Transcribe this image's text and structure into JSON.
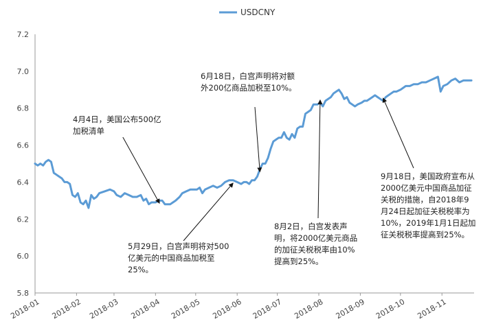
{
  "chart_data": {
    "type": "line",
    "title": "",
    "legend": {
      "position": "top",
      "entries": [
        "USDCNY"
      ]
    },
    "ylim": [
      5.8,
      7.2
    ],
    "yticks": [
      "5.8",
      "6.0",
      "6.2",
      "6.4",
      "6.6",
      "6.8",
      "7.0",
      "7.2"
    ],
    "xlim": [
      "2018-01-01",
      "2018-11-25"
    ],
    "xticks": [
      "2018-01",
      "2018-02",
      "2018-03",
      "2018-04",
      "2018-05",
      "2018-06",
      "2018-07",
      "2018-08",
      "2018-09",
      "2018-10",
      "2018-11"
    ],
    "grid": false,
    "series": [
      {
        "name": "USDCNY",
        "color": "#5b9bd5",
        "points": [
          [
            "2018-01-01",
            6.5
          ],
          [
            "2018-01-03",
            6.49
          ],
          [
            "2018-01-05",
            6.5
          ],
          [
            "2018-01-07",
            6.49
          ],
          [
            "2018-01-09",
            6.51
          ],
          [
            "2018-01-11",
            6.52
          ],
          [
            "2018-01-13",
            6.51
          ],
          [
            "2018-01-15",
            6.45
          ],
          [
            "2018-01-17",
            6.44
          ],
          [
            "2018-01-19",
            6.43
          ],
          [
            "2018-01-21",
            6.42
          ],
          [
            "2018-01-23",
            6.4
          ],
          [
            "2018-01-25",
            6.4
          ],
          [
            "2018-01-27",
            6.39
          ],
          [
            "2018-01-29",
            6.33
          ],
          [
            "2018-01-31",
            6.32
          ],
          [
            "2018-02-02",
            6.34
          ],
          [
            "2018-02-04",
            6.29
          ],
          [
            "2018-02-06",
            6.28
          ],
          [
            "2018-02-08",
            6.3
          ],
          [
            "2018-02-10",
            6.26
          ],
          [
            "2018-02-12",
            6.33
          ],
          [
            "2018-02-14",
            6.31
          ],
          [
            "2018-02-16",
            6.32
          ],
          [
            "2018-02-18",
            6.34
          ],
          [
            "2018-02-22",
            6.35
          ],
          [
            "2018-02-26",
            6.36
          ],
          [
            "2018-03-01",
            6.35
          ],
          [
            "2018-03-03",
            6.33
          ],
          [
            "2018-03-06",
            6.32
          ],
          [
            "2018-03-09",
            6.34
          ],
          [
            "2018-03-12",
            6.33
          ],
          [
            "2018-03-15",
            6.32
          ],
          [
            "2018-03-18",
            6.32
          ],
          [
            "2018-03-21",
            6.33
          ],
          [
            "2018-03-23",
            6.3
          ],
          [
            "2018-03-25",
            6.31
          ],
          [
            "2018-03-27",
            6.28
          ],
          [
            "2018-03-29",
            6.29
          ],
          [
            "2018-04-01",
            6.29
          ],
          [
            "2018-04-04",
            6.3
          ],
          [
            "2018-04-06",
            6.3
          ],
          [
            "2018-04-08",
            6.28
          ],
          [
            "2018-04-10",
            6.28
          ],
          [
            "2018-04-12",
            6.28
          ],
          [
            "2018-04-14",
            6.29
          ],
          [
            "2018-04-16",
            6.3
          ],
          [
            "2018-04-19",
            6.32
          ],
          [
            "2018-04-21",
            6.34
          ],
          [
            "2018-04-24",
            6.35
          ],
          [
            "2018-04-27",
            6.36
          ],
          [
            "2018-04-30",
            6.36
          ],
          [
            "2018-05-02",
            6.36
          ],
          [
            "2018-05-04",
            6.37
          ],
          [
            "2018-05-06",
            6.34
          ],
          [
            "2018-05-08",
            6.36
          ],
          [
            "2018-05-11",
            6.37
          ],
          [
            "2018-05-14",
            6.38
          ],
          [
            "2018-05-17",
            6.37
          ],
          [
            "2018-05-20",
            6.38
          ],
          [
            "2018-05-23",
            6.4
          ],
          [
            "2018-05-26",
            6.41
          ],
          [
            "2018-05-29",
            6.41
          ],
          [
            "2018-06-01",
            6.4
          ],
          [
            "2018-06-04",
            6.39
          ],
          [
            "2018-06-06",
            6.4
          ],
          [
            "2018-06-08",
            6.4
          ],
          [
            "2018-06-10",
            6.39
          ],
          [
            "2018-06-12",
            6.41
          ],
          [
            "2018-06-14",
            6.41
          ],
          [
            "2018-06-16",
            6.43
          ],
          [
            "2018-06-18",
            6.47
          ],
          [
            "2018-06-20",
            6.5
          ],
          [
            "2018-06-22",
            6.5
          ],
          [
            "2018-06-24",
            6.53
          ],
          [
            "2018-06-26",
            6.58
          ],
          [
            "2018-06-28",
            6.62
          ],
          [
            "2018-06-30",
            6.63
          ],
          [
            "2018-07-02",
            6.64
          ],
          [
            "2018-07-04",
            6.64
          ],
          [
            "2018-07-06",
            6.67
          ],
          [
            "2018-07-08",
            6.64
          ],
          [
            "2018-07-10",
            6.63
          ],
          [
            "2018-07-12",
            6.66
          ],
          [
            "2018-07-14",
            6.64
          ],
          [
            "2018-07-16",
            6.69
          ],
          [
            "2018-07-18",
            6.7
          ],
          [
            "2018-07-20",
            6.7
          ],
          [
            "2018-07-22",
            6.77
          ],
          [
            "2018-07-24",
            6.78
          ],
          [
            "2018-07-26",
            6.79
          ],
          [
            "2018-07-28",
            6.82
          ],
          [
            "2018-07-31",
            6.82
          ],
          [
            "2018-08-02",
            6.83
          ],
          [
            "2018-08-04",
            6.81
          ],
          [
            "2018-08-06",
            6.84
          ],
          [
            "2018-08-08",
            6.85
          ],
          [
            "2018-08-10",
            6.86
          ],
          [
            "2018-08-12",
            6.88
          ],
          [
            "2018-08-14",
            6.89
          ],
          [
            "2018-08-16",
            6.9
          ],
          [
            "2018-08-18",
            6.88
          ],
          [
            "2018-08-20",
            6.85
          ],
          [
            "2018-08-22",
            6.86
          ],
          [
            "2018-08-24",
            6.83
          ],
          [
            "2018-08-26",
            6.82
          ],
          [
            "2018-08-28",
            6.81
          ],
          [
            "2018-08-30",
            6.82
          ],
          [
            "2018-09-02",
            6.83
          ],
          [
            "2018-09-04",
            6.84
          ],
          [
            "2018-09-06",
            6.84
          ],
          [
            "2018-09-08",
            6.85
          ],
          [
            "2018-09-10",
            6.86
          ],
          [
            "2018-09-12",
            6.87
          ],
          [
            "2018-09-14",
            6.86
          ],
          [
            "2018-09-16",
            6.85
          ],
          [
            "2018-09-18",
            6.84
          ],
          [
            "2018-09-20",
            6.86
          ],
          [
            "2018-09-22",
            6.87
          ],
          [
            "2018-09-24",
            6.88
          ],
          [
            "2018-09-26",
            6.89
          ],
          [
            "2018-09-28",
            6.89
          ],
          [
            "2018-10-01",
            6.9
          ],
          [
            "2018-10-03",
            6.91
          ],
          [
            "2018-10-05",
            6.92
          ],
          [
            "2018-10-08",
            6.92
          ],
          [
            "2018-10-11",
            6.93
          ],
          [
            "2018-10-14",
            6.93
          ],
          [
            "2018-10-17",
            6.94
          ],
          [
            "2018-10-20",
            6.94
          ],
          [
            "2018-10-23",
            6.95
          ],
          [
            "2018-10-26",
            6.96
          ],
          [
            "2018-10-29",
            6.97
          ],
          [
            "2018-10-31",
            6.89
          ],
          [
            "2018-11-02",
            6.92
          ],
          [
            "2018-11-05",
            6.93
          ],
          [
            "2018-11-08",
            6.95
          ],
          [
            "2018-11-11",
            6.96
          ],
          [
            "2018-11-14",
            6.94
          ],
          [
            "2018-11-17",
            6.95
          ],
          [
            "2018-11-20",
            6.95
          ],
          [
            "2018-11-23",
            6.95
          ]
        ]
      }
    ],
    "annotations": [
      {
        "text": "4月4日，美国公布500亿加税清单",
        "date": "2018-04-04",
        "value": 6.3
      },
      {
        "text": "5月29日，白宫声明将对500亿美元的中国商品加税至25%。",
        "date": "2018-05-29",
        "value": 6.41
      },
      {
        "text": "6月18日，白宫声明将对额外200亿商品加税至10%。",
        "date": "2018-06-18",
        "value": 6.47
      },
      {
        "text": "8月2日，白宫发表声明，将2000亿美元商品的加征关税税率由10%提高到25%。",
        "date": "2018-08-02",
        "value": 6.83
      },
      {
        "text": "9月18日，美国政府宣布从2000亿美元中国商品加征关税的措施，自2018年9月24日起加征关税税率为10%，2019年1月1日起加征关税税率提高到25%。",
        "date": "2018-09-18",
        "value": 6.84
      }
    ]
  }
}
